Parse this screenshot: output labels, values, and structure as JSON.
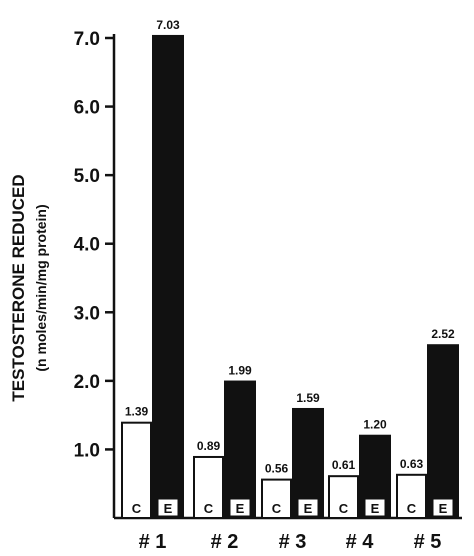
{
  "chart_data": {
    "type": "bar",
    "title": "",
    "ylabel_line1": "TESTOSTERONE REDUCED",
    "ylabel_line2": "(n moles/min/mg protein)",
    "xlabel": "",
    "ylim": [
      0,
      7.0
    ],
    "yticks": [
      "1.0",
      "2.0",
      "3.0",
      "4.0",
      "5.0",
      "6.0",
      "7.0"
    ],
    "categories": [
      "# 1",
      "# 2",
      "# 3",
      "# 4",
      "# 5"
    ],
    "series": [
      {
        "name": "C",
        "fill": "#ffffff",
        "values": [
          1.39,
          0.89,
          0.56,
          0.61,
          0.63
        ],
        "labels": [
          "1.39",
          "0.89",
          "0.56",
          "0.61",
          "0.63"
        ]
      },
      {
        "name": "E",
        "fill": "#111111",
        "values": [
          7.03,
          1.99,
          1.59,
          1.2,
          2.52
        ],
        "labels": [
          "7.03",
          "1.99",
          "1.59",
          "1.20",
          "2.52"
        ]
      }
    ],
    "grid": false,
    "legend": "none"
  }
}
